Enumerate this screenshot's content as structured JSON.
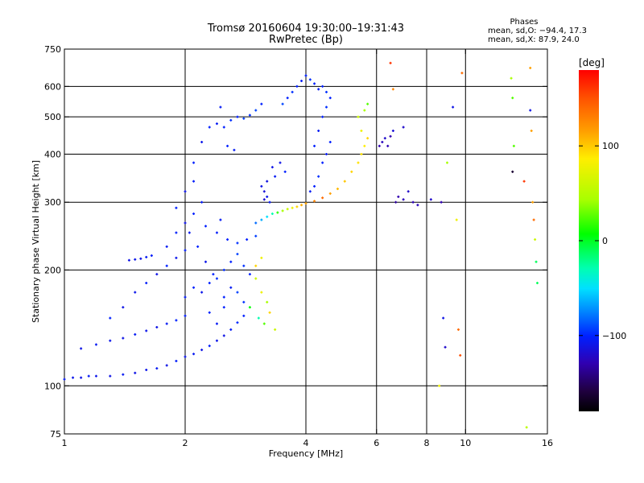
{
  "header": {
    "title_line1": "Tromsø 20160604 19:30:00–19:31:43",
    "title_line2": "RwPretec (Bp)"
  },
  "stats": {
    "heading": "Phases",
    "line_o": "mean, sd,O: −94.4, 17.3",
    "line_x": "mean, sd,X:  87.9, 24.0"
  },
  "colorbar": {
    "unit_label": "[deg]",
    "ticks": [
      {
        "value": 100,
        "label": "100"
      },
      {
        "value": 0,
        "label": "0"
      },
      {
        "value": -100,
        "label": "−100"
      }
    ],
    "range": [
      -180,
      180
    ]
  },
  "chart_data": {
    "type": "scatter",
    "title": "Tromsø 20160604 19:30:00–19:31:43",
    "subtitle": "RwPretec (Bp)",
    "xlabel": "Frequency [MHz]",
    "ylabel": "Stationary phase Virtual Height [km]",
    "xscale": "log",
    "yscale": "log",
    "xlim": [
      1,
      16
    ],
    "ylim": [
      75,
      750
    ],
    "xticks": [
      {
        "value": 1,
        "label": "1"
      },
      {
        "value": 2,
        "label": "2"
      },
      {
        "value": 4,
        "label": "4"
      },
      {
        "value": 6,
        "label": "6"
      },
      {
        "value": 8,
        "label": "8"
      },
      {
        "value": 10,
        "label": "10"
      },
      {
        "value": 16,
        "label": "16"
      }
    ],
    "yticks": [
      {
        "value": 75,
        "label": "75"
      },
      {
        "value": 100,
        "label": "100"
      },
      {
        "value": 200,
        "label": "200"
      },
      {
        "value": 300,
        "label": "300"
      },
      {
        "value": 400,
        "label": "400"
      },
      {
        "value": 500,
        "label": "500"
      },
      {
        "value": 600,
        "label": "600"
      },
      {
        "value": 750,
        "label": "750"
      }
    ],
    "vgrid": [
      2,
      4,
      6,
      8,
      10
    ],
    "hgrid": [
      100,
      200,
      300,
      400,
      500,
      600
    ],
    "color_by": "phase_deg",
    "points": [
      [
        1.0,
        104,
        -105
      ],
      [
        1.05,
        105,
        -108
      ],
      [
        1.1,
        105,
        -110
      ],
      [
        1.15,
        106,
        -104
      ],
      [
        1.2,
        106,
        -108
      ],
      [
        1.3,
        106,
        -110
      ],
      [
        1.4,
        107,
        -105
      ],
      [
        1.5,
        108,
        -110
      ],
      [
        1.6,
        110,
        -108
      ],
      [
        1.7,
        111,
        -105
      ],
      [
        1.8,
        113,
        -110
      ],
      [
        1.9,
        116,
        -102
      ],
      [
        2.0,
        119,
        -108
      ],
      [
        2.1,
        121,
        -105
      ],
      [
        2.2,
        124,
        -110
      ],
      [
        2.3,
        127,
        -102
      ],
      [
        2.4,
        131,
        -108
      ],
      [
        2.5,
        135,
        -110
      ],
      [
        2.6,
        140,
        -104
      ],
      [
        2.7,
        146,
        -98
      ],
      [
        2.8,
        152,
        -100
      ],
      [
        1.1,
        125,
        -110
      ],
      [
        1.2,
        128,
        -105
      ],
      [
        1.3,
        131,
        -108
      ],
      [
        1.4,
        133,
        -110
      ],
      [
        1.5,
        136,
        -104
      ],
      [
        1.6,
        139,
        -108
      ],
      [
        1.7,
        142,
        -110
      ],
      [
        1.8,
        145,
        -105
      ],
      [
        1.9,
        148,
        -100
      ],
      [
        2.0,
        152,
        -102
      ],
      [
        1.45,
        212,
        -110
      ],
      [
        1.5,
        213,
        -108
      ],
      [
        1.55,
        214,
        -110
      ],
      [
        1.6,
        216,
        -104
      ],
      [
        1.65,
        218,
        -102
      ],
      [
        1.3,
        150,
        -100
      ],
      [
        1.4,
        160,
        -110
      ],
      [
        1.5,
        175,
        -108
      ],
      [
        1.6,
        185,
        -102
      ],
      [
        1.7,
        195,
        -110
      ],
      [
        1.8,
        205,
        -100
      ],
      [
        1.9,
        215,
        -108
      ],
      [
        2.0,
        225,
        -102
      ],
      [
        1.8,
        230,
        -105
      ],
      [
        1.9,
        250,
        -102
      ],
      [
        2.0,
        265,
        -110
      ],
      [
        2.1,
        280,
        -100
      ],
      [
        2.2,
        300,
        -104
      ],
      [
        2.0,
        320,
        -110
      ],
      [
        2.1,
        340,
        -102
      ],
      [
        1.9,
        290,
        -100
      ],
      [
        2.05,
        250,
        -106
      ],
      [
        2.15,
        230,
        -100
      ],
      [
        2.25,
        210,
        -108
      ],
      [
        2.35,
        195,
        -100
      ],
      [
        2.5,
        200,
        -96
      ],
      [
        2.6,
        210,
        -100
      ],
      [
        2.7,
        220,
        -92
      ],
      [
        2.8,
        205,
        -96
      ],
      [
        2.9,
        195,
        -100
      ],
      [
        2.4,
        250,
        -102
      ],
      [
        2.55,
        240,
        -100
      ],
      [
        2.7,
        235,
        -96
      ],
      [
        2.85,
        240,
        -100
      ],
      [
        3.0,
        245,
        -92
      ],
      [
        2.25,
        260,
        -100
      ],
      [
        2.45,
        270,
        -104
      ],
      [
        2.0,
        170,
        -104
      ],
      [
        2.1,
        180,
        -100
      ],
      [
        2.2,
        175,
        -108
      ],
      [
        2.3,
        185,
        -100
      ],
      [
        2.4,
        190,
        -96
      ],
      [
        2.5,
        170,
        -100
      ],
      [
        2.6,
        180,
        -104
      ],
      [
        2.7,
        175,
        -92
      ],
      [
        2.8,
        165,
        -96
      ],
      [
        2.3,
        155,
        -100
      ],
      [
        2.4,
        145,
        -104
      ],
      [
        2.5,
        160,
        -100
      ],
      [
        2.1,
        380,
        -100
      ],
      [
        2.2,
        430,
        -108
      ],
      [
        2.3,
        470,
        -100
      ],
      [
        2.4,
        480,
        -104
      ],
      [
        2.5,
        470,
        -100
      ],
      [
        2.6,
        490,
        -96
      ],
      [
        2.7,
        500,
        -100
      ],
      [
        2.8,
        495,
        -92
      ],
      [
        2.9,
        505,
        -96
      ],
      [
        3.0,
        520,
        -90
      ],
      [
        3.1,
        540,
        -100
      ],
      [
        2.45,
        530,
        -104
      ],
      [
        2.55,
        420,
        -100
      ],
      [
        2.65,
        410,
        -104
      ],
      [
        3.1,
        330,
        -110
      ],
      [
        3.15,
        320,
        -115
      ],
      [
        3.2,
        310,
        -108
      ],
      [
        3.25,
        300,
        -105
      ],
      [
        3.2,
        340,
        -112
      ],
      [
        3.15,
        305,
        -118
      ],
      [
        3.3,
        370,
        -110
      ],
      [
        3.35,
        350,
        -104
      ],
      [
        3.45,
        380,
        -110
      ],
      [
        3.55,
        360,
        -100
      ],
      [
        3.5,
        540,
        -90
      ],
      [
        3.6,
        560,
        -100
      ],
      [
        3.7,
        580,
        -96
      ],
      [
        3.8,
        600,
        -100
      ],
      [
        3.9,
        620,
        -104
      ],
      [
        4.0,
        640,
        -100
      ],
      [
        4.1,
        625,
        -96
      ],
      [
        4.2,
        610,
        -100
      ],
      [
        4.3,
        590,
        -104
      ],
      [
        4.4,
        600,
        -100
      ],
      [
        4.5,
        580,
        -96
      ],
      [
        4.6,
        560,
        -100
      ],
      [
        4.2,
        420,
        -100
      ],
      [
        4.3,
        460,
        -104
      ],
      [
        4.4,
        500,
        -100
      ],
      [
        4.5,
        530,
        -96
      ],
      [
        4.4,
        380,
        -100
      ],
      [
        4.5,
        400,
        -104
      ],
      [
        4.6,
        430,
        -100
      ],
      [
        4.3,
        350,
        -96
      ],
      [
        4.2,
        330,
        -100
      ],
      [
        4.1,
        320,
        -104
      ],
      [
        3.0,
        265,
        -80
      ],
      [
        3.1,
        270,
        -60
      ],
      [
        3.2,
        275,
        -40
      ],
      [
        3.3,
        280,
        -20
      ],
      [
        3.4,
        282,
        10
      ],
      [
        3.5,
        285,
        40
      ],
      [
        3.6,
        288,
        60
      ],
      [
        3.7,
        290,
        80
      ],
      [
        3.8,
        292,
        100
      ],
      [
        3.9,
        295,
        115
      ],
      [
        4.0,
        298,
        120
      ],
      [
        4.2,
        302,
        130
      ],
      [
        4.4,
        308,
        140
      ],
      [
        4.6,
        316,
        120
      ],
      [
        4.8,
        325,
        110
      ],
      [
        5.0,
        340,
        105
      ],
      [
        5.2,
        360,
        100
      ],
      [
        5.4,
        380,
        95
      ],
      [
        5.5,
        400,
        95
      ],
      [
        5.6,
        420,
        90
      ],
      [
        5.7,
        440,
        100
      ],
      [
        5.5,
        460,
        80
      ],
      [
        5.4,
        500,
        60
      ],
      [
        5.6,
        520,
        40
      ],
      [
        5.7,
        540,
        20
      ],
      [
        3.0,
        190,
        60
      ],
      [
        3.1,
        175,
        80
      ],
      [
        3.2,
        165,
        40
      ],
      [
        3.05,
        150,
        -20
      ],
      [
        3.15,
        145,
        20
      ],
      [
        3.25,
        155,
        100
      ],
      [
        3.35,
        140,
        60
      ],
      [
        3.0,
        205,
        100
      ],
      [
        3.1,
        215,
        80
      ],
      [
        2.9,
        160,
        0
      ],
      [
        6.1,
        420,
        -130
      ],
      [
        6.2,
        430,
        -125
      ],
      [
        6.3,
        440,
        -120
      ],
      [
        6.4,
        420,
        -128
      ],
      [
        6.5,
        445,
        -130
      ],
      [
        6.6,
        460,
        -115
      ],
      [
        6.7,
        300,
        -135
      ],
      [
        6.8,
        310,
        -130
      ],
      [
        7.0,
        305,
        -125
      ],
      [
        7.2,
        320,
        -120
      ],
      [
        7.4,
        300,
        -128
      ],
      [
        7.6,
        295,
        -125
      ],
      [
        8.2,
        305,
        -120
      ],
      [
        8.7,
        300,
        -130
      ],
      [
        6.5,
        690,
        160
      ],
      [
        6.6,
        590,
        130
      ],
      [
        7.0,
        470,
        -120
      ],
      [
        9.0,
        380,
        40
      ],
      [
        9.5,
        270,
        80
      ],
      [
        9.6,
        140,
        140
      ],
      [
        9.7,
        120,
        150
      ],
      [
        8.8,
        150,
        -110
      ],
      [
        8.9,
        126,
        -120
      ],
      [
        8.6,
        100,
        80
      ],
      [
        13.0,
        630,
        40
      ],
      [
        13.1,
        560,
        20
      ],
      [
        13.2,
        420,
        20
      ],
      [
        13.1,
        360,
        -160
      ],
      [
        14.0,
        340,
        160
      ],
      [
        14.5,
        670,
        120
      ],
      [
        14.6,
        460,
        120
      ],
      [
        14.7,
        300,
        120
      ],
      [
        14.8,
        270,
        140
      ],
      [
        14.9,
        240,
        60
      ],
      [
        15.0,
        210,
        -10
      ],
      [
        15.1,
        185,
        -10
      ],
      [
        14.5,
        520,
        -110
      ],
      [
        14.2,
        78,
        50
      ],
      [
        9.3,
        530,
        -110
      ],
      [
        9.8,
        650,
        140
      ]
    ]
  }
}
